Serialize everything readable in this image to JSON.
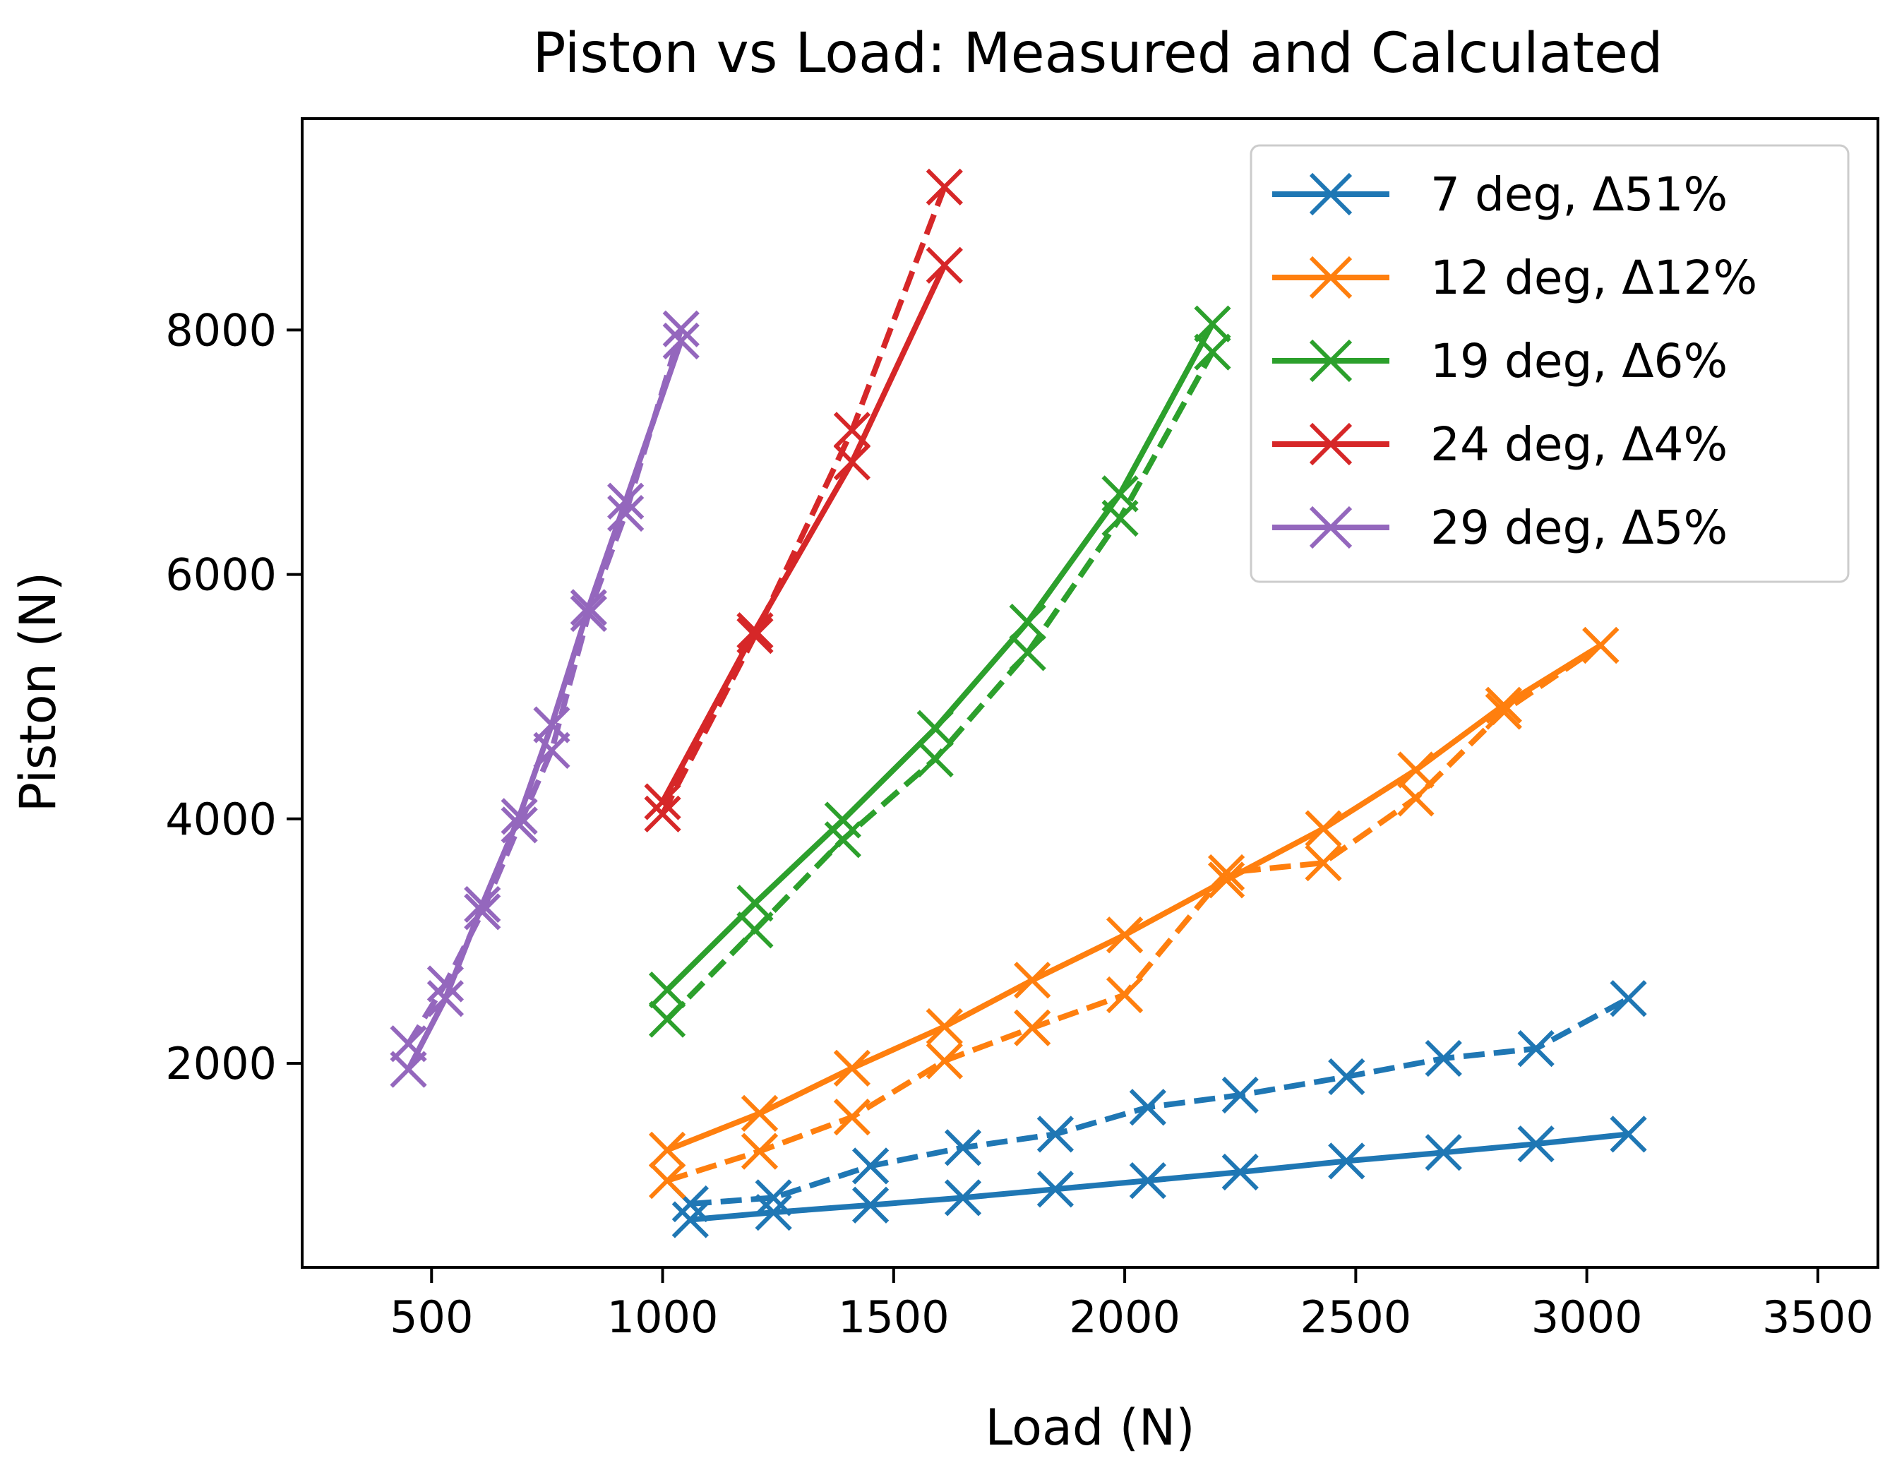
{
  "chart_data": {
    "type": "line",
    "title": "Piston vs Load: Measured and Calculated",
    "xlabel": "Load (N)",
    "ylabel": "Piston (N)",
    "xlim": [
      220,
      3630
    ],
    "ylim": [
      330,
      9730
    ],
    "xticks": [
      500,
      1000,
      1500,
      2000,
      2500,
      3000,
      3500
    ],
    "yticks": [
      2000,
      4000,
      6000,
      8000
    ],
    "xtick_labels": [
      "500",
      "1000",
      "1500",
      "2000",
      "2500",
      "3000",
      "3500"
    ],
    "ytick_labels": [
      "2000",
      "4000",
      "6000",
      "8000"
    ],
    "legend_position": "top-right",
    "line_styles_note": "solid = measured, dashed = calculated",
    "series": [
      {
        "name": "7 deg, Δ51%",
        "legend_label": "  7 deg, Δ51%",
        "color": "#1f77b4",
        "solid": {
          "x": [
            1060,
            1240,
            1450,
            1650,
            1850,
            2050,
            2250,
            2480,
            2690,
            2890,
            3090
          ],
          "y": [
            720,
            780,
            840,
            900,
            970,
            1040,
            1110,
            1200,
            1270,
            1340,
            1420
          ]
        },
        "dashed": {
          "x": [
            1060,
            1240,
            1450,
            1650,
            1850,
            2050,
            2250,
            2480,
            2690,
            2890,
            3090
          ],
          "y": [
            850,
            900,
            1160,
            1310,
            1420,
            1640,
            1740,
            1890,
            2040,
            2120,
            2530
          ]
        }
      },
      {
        "name": "12 deg, Δ12%",
        "legend_label": "12 deg, Δ12%",
        "color": "#ff7f0e",
        "solid": {
          "x": [
            1010,
            1210,
            1410,
            1610,
            1800,
            2000,
            2220,
            2430,
            2630,
            2820,
            3030
          ],
          "y": [
            1290,
            1590,
            1960,
            2300,
            2680,
            3050,
            3500,
            3920,
            4400,
            4930,
            5420
          ]
        },
        "dashed": {
          "x": [
            1010,
            1210,
            1410,
            1610,
            1800,
            2000,
            2220,
            2430,
            2630,
            2820,
            3030
          ],
          "y": [
            1040,
            1280,
            1560,
            2020,
            2290,
            2560,
            3560,
            3640,
            4170,
            4880,
            5420
          ]
        }
      },
      {
        "name": "19 deg, Δ6%",
        "legend_label": "19 deg, Δ6%",
        "color": "#2ca02c",
        "solid": {
          "x": [
            1010,
            1200,
            1390,
            1590,
            1790,
            1990,
            2190
          ],
          "y": [
            2600,
            3310,
            3990,
            4740,
            5610,
            6660,
            8050
          ]
        },
        "dashed": {
          "x": [
            1010,
            1200,
            1390,
            1590,
            1790,
            1990,
            2190
          ],
          "y": [
            2360,
            3090,
            3830,
            4490,
            5360,
            6460,
            7820
          ]
        }
      },
      {
        "name": "24 deg, Δ4%",
        "legend_label": "24 deg, Δ4%",
        "color": "#d62728",
        "solid": {
          "x": [
            1000,
            1200,
            1410,
            1610
          ],
          "y": [
            4140,
            5540,
            6920,
            8530
          ]
        },
        "dashed": {
          "x": [
            1000,
            1200,
            1410,
            1610
          ],
          "y": [
            4040,
            5500,
            7180,
            9170
          ]
        }
      },
      {
        "name": "29 deg, Δ5%",
        "legend_label": "29 deg, Δ5%",
        "color": "#9467bd",
        "solid": {
          "x": [
            450,
            530,
            610,
            690,
            760,
            840,
            920,
            1040
          ],
          "y": [
            1950,
            2530,
            3300,
            4020,
            4770,
            5730,
            6600,
            7910
          ]
        },
        "dashed": {
          "x": [
            450,
            530,
            610,
            690,
            760,
            840,
            920,
            1040
          ],
          "y": [
            2160,
            2650,
            3240,
            3950,
            4560,
            5680,
            6500,
            8010
          ]
        }
      }
    ]
  }
}
